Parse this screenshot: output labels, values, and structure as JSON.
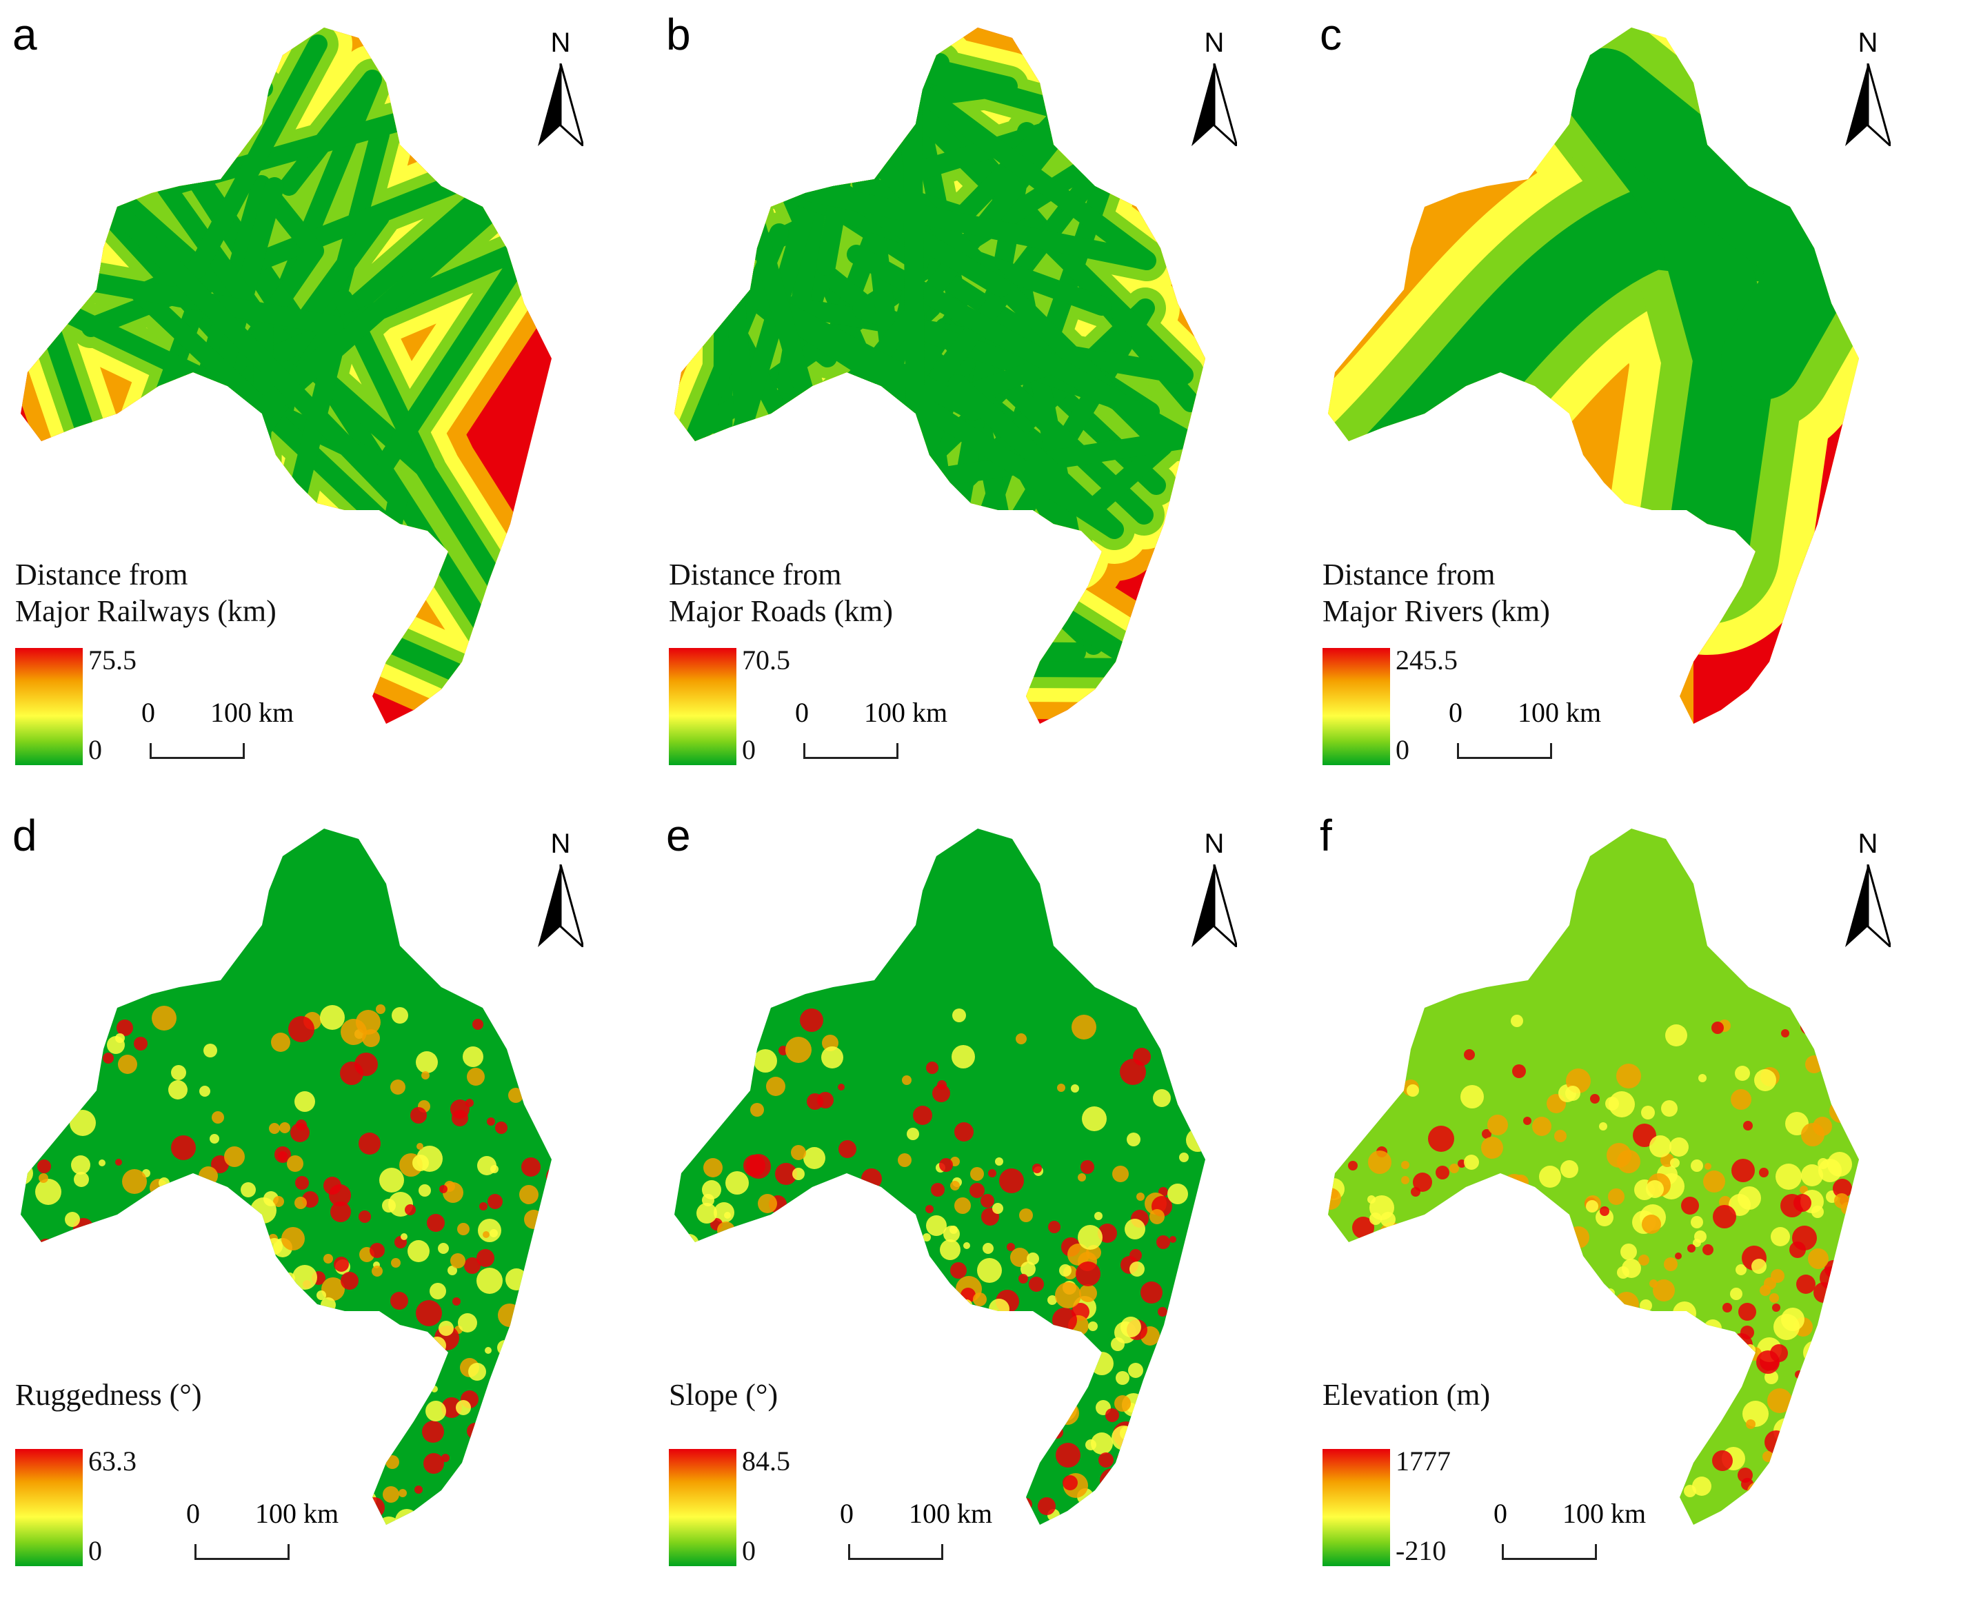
{
  "panels": [
    {
      "letter": "a",
      "north": "N",
      "legend": {
        "title": "Distance from\nMajor Railways (km)",
        "max": "75.5",
        "min": "0"
      },
      "scale": {
        "zero": "0",
        "label": "100 km"
      },
      "style": "network"
    },
    {
      "letter": "b",
      "north": "N",
      "legend": {
        "title": "Distance from\nMajor Roads (km)",
        "max": "70.5",
        "min": "0"
      },
      "scale": {
        "zero": "0",
        "label": "100 km"
      },
      "style": "network-dense"
    },
    {
      "letter": "c",
      "north": "N",
      "legend": {
        "title": "Distance from\nMajor Rivers (km)",
        "max": "245.5",
        "min": "0"
      },
      "scale": {
        "zero": "0",
        "label": "100 km"
      },
      "style": "rivers"
    },
    {
      "letter": "d",
      "north": "N",
      "legend": {
        "title": "Ruggedness (°)",
        "max": "63.3",
        "min": "0"
      },
      "scale": {
        "zero": "0",
        "label": "100 km"
      },
      "style": "terrain"
    },
    {
      "letter": "e",
      "north": "N",
      "legend": {
        "title": "Slope (°)",
        "max": "84.5",
        "min": "0"
      },
      "scale": {
        "zero": "0",
        "label": "100 km"
      },
      "style": "terrain"
    },
    {
      "letter": "f",
      "north": "N",
      "legend": {
        "title": "Elevation (m)",
        "max": "1777",
        "min": "-210"
      },
      "scale": {
        "zero": "0",
        "label": "100 km"
      },
      "style": "elevation"
    }
  ],
  "colors": {
    "low": "#00a51f",
    "mid_low": "#7ed31a",
    "mid": "#ffff40",
    "mid_high": "#f5a000",
    "high": "#e8000a"
  }
}
